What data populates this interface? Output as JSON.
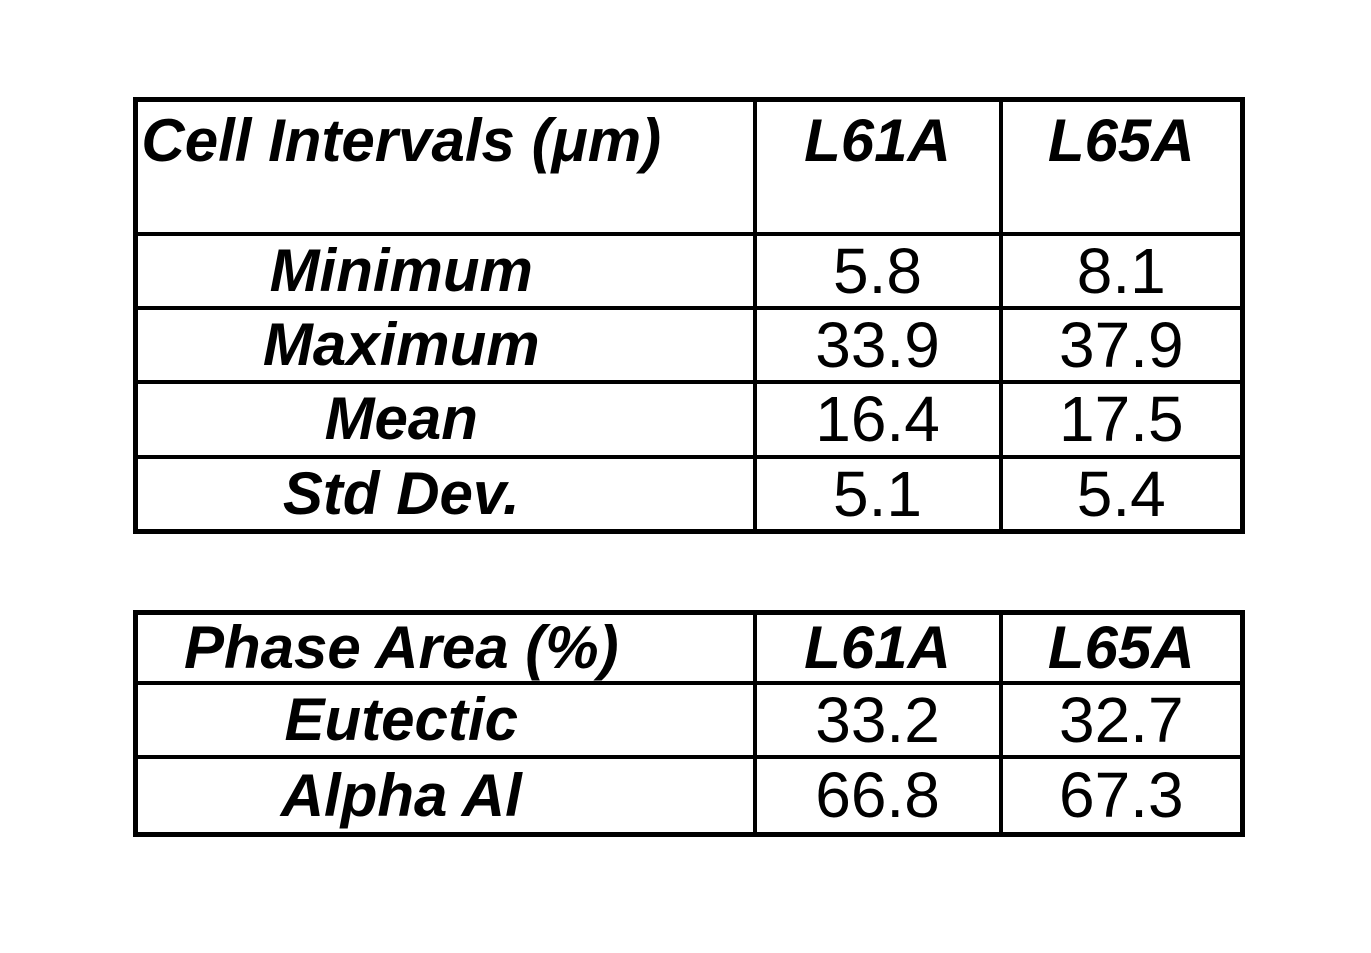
{
  "cell_intervals_table": {
    "title": "Cell Intervals (μm)",
    "columns": [
      "L61A",
      "L65A"
    ],
    "rows": [
      {
        "label": "Minimum",
        "values": [
          "5.8",
          "8.1"
        ]
      },
      {
        "label": "Maximum",
        "values": [
          "33.9",
          "37.9"
        ]
      },
      {
        "label": "Mean",
        "values": [
          "16.4",
          "17.5"
        ]
      },
      {
        "label": "Std Dev.",
        "values": [
          "5.1",
          "5.4"
        ]
      }
    ]
  },
  "phase_area_table": {
    "title": "Phase Area (%)",
    "columns": [
      "L61A",
      "L65A"
    ],
    "rows": [
      {
        "label": "Eutectic",
        "values": [
          "33.2",
          "32.7"
        ]
      },
      {
        "label": "Alpha Al",
        "values": [
          "66.8",
          "67.3"
        ]
      }
    ]
  },
  "colors": {
    "text": "#000000",
    "border": "#000000",
    "background": "#ffffff"
  },
  "chart_data": [
    {
      "type": "table",
      "title": "Cell Intervals (μm)",
      "columns": [
        "Cell Intervals (μm)",
        "L61A",
        "L65A"
      ],
      "rows": [
        [
          "Minimum",
          5.8,
          8.1
        ],
        [
          "Maximum",
          33.9,
          37.9
        ],
        [
          "Mean",
          16.4,
          17.5
        ],
        [
          "Std Dev.",
          5.1,
          5.4
        ]
      ]
    },
    {
      "type": "table",
      "title": "Phase Area (%)",
      "columns": [
        "Phase Area (%)",
        "L61A",
        "L65A"
      ],
      "rows": [
        [
          "Eutectic",
          33.2,
          32.7
        ],
        [
          "Alpha Al",
          66.8,
          67.3
        ]
      ]
    }
  ]
}
